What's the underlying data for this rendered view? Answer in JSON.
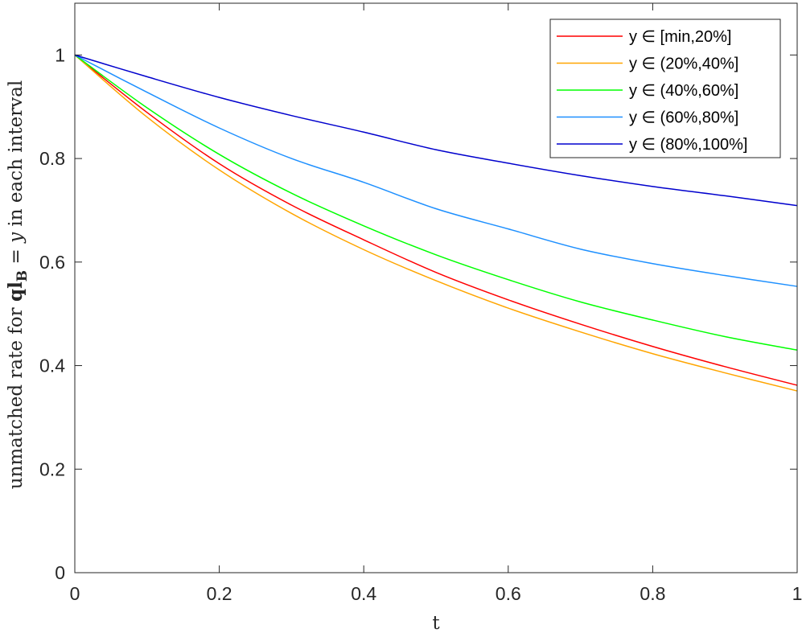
{
  "chart_data": {
    "type": "line",
    "title": "",
    "xlabel": "t",
    "ylabel_parts": [
      "unmatched rate for ",
      "ql",
      "B",
      " = ",
      "y",
      " in each interval"
    ],
    "xlim": [
      0,
      1
    ],
    "ylim": [
      0,
      1.1
    ],
    "xticks": [
      0,
      0.2,
      0.4,
      0.6,
      0.8,
      1
    ],
    "xtick_labels": [
      "0",
      "0.2",
      "0.4",
      "0.6",
      "0.8",
      "1"
    ],
    "yticks": [
      0,
      0.2,
      0.4,
      0.6,
      0.8,
      1
    ],
    "ytick_labels": [
      "0",
      "0.2",
      "0.4",
      "0.6",
      "0.8",
      "1"
    ],
    "grid": false,
    "legend_position": "top-right",
    "x": [
      0,
      0.1,
      0.2,
      0.3,
      0.4,
      0.5,
      0.6,
      0.7,
      0.8,
      0.9,
      1.0
    ],
    "series": [
      {
        "name": "y ∈ [min,20%]",
        "color": "#ff0000",
        "values": [
          1.0,
          0.889,
          0.79,
          0.71,
          0.643,
          0.58,
          0.527,
          0.48,
          0.437,
          0.398,
          0.362
        ]
      },
      {
        "name": "y ∈ (20%,40%]",
        "color": "#ffa500",
        "values": [
          1.0,
          0.88,
          0.778,
          0.694,
          0.624,
          0.564,
          0.511,
          0.465,
          0.423,
          0.386,
          0.351
        ]
      },
      {
        "name": "y ∈ (40%,60%]",
        "color": "#00ff00",
        "values": [
          1.0,
          0.898,
          0.808,
          0.733,
          0.67,
          0.614,
          0.566,
          0.523,
          0.488,
          0.456,
          0.43
        ]
      },
      {
        "name": "y ∈ (60%,80%]",
        "color": "#1e90ff",
        "values": [
          1.0,
          0.928,
          0.859,
          0.8,
          0.754,
          0.703,
          0.664,
          0.625,
          0.597,
          0.574,
          0.553
        ]
      },
      {
        "name": "y ∈ (80%,100%]",
        "color": "#0000cd",
        "values": [
          1.0,
          0.958,
          0.918,
          0.883,
          0.851,
          0.817,
          0.791,
          0.767,
          0.746,
          0.728,
          0.709
        ]
      }
    ]
  }
}
